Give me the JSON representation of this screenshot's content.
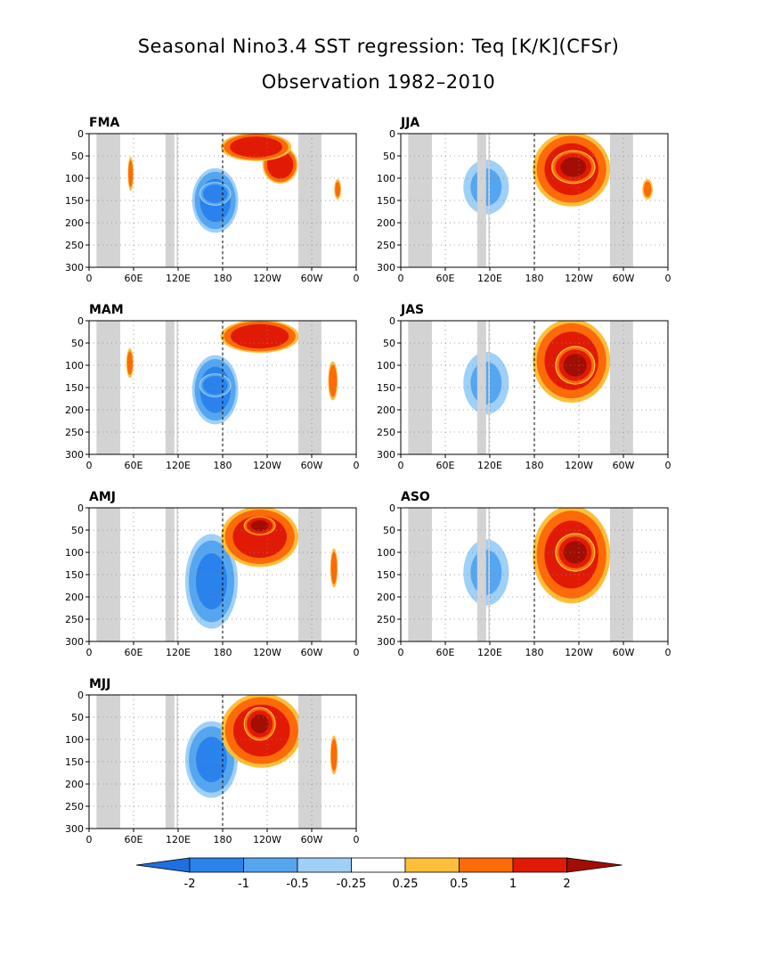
{
  "title": "Seasonal Nino3.4 SST regression: Teq [K/K](CFSr)",
  "subtitle": "Observation 1982–2010",
  "chart_data": [
    {
      "type": "heatmap",
      "panel": "FMA",
      "x_tick_labels": [
        "0",
        "60E",
        "120E",
        "180",
        "120W",
        "60W",
        "0"
      ],
      "y_tick_labels": [
        "0",
        "50",
        "100",
        "150",
        "200",
        "250",
        "300"
      ],
      "xlim": [
        0,
        360
      ],
      "ylim": [
        300,
        0
      ],
      "grid": "dotted",
      "features": [
        {
          "lon": [
            235,
            280
          ],
          "depth": [
            30,
            110
          ],
          "value": 1.5
        },
        {
          "lon": [
            180,
            270
          ],
          "depth": [
            0,
            60
          ],
          "value": 1.5
        },
        {
          "lon": [
            140,
            200
          ],
          "depth": [
            80,
            220
          ],
          "value": -1.2
        },
        {
          "lon": [
            150,
            190
          ],
          "depth": [
            110,
            160
          ],
          "value": -1.7
        },
        {
          "lon": [
            52,
            60
          ],
          "depth": [
            50,
            130
          ],
          "value": 0.7
        },
        {
          "lon": [
            330,
            340
          ],
          "depth": [
            100,
            150
          ],
          "value": 0.6
        }
      ]
    },
    {
      "type": "heatmap",
      "panel": "JJA",
      "x_tick_labels": [
        "0",
        "60E",
        "120E",
        "180",
        "120W",
        "60W",
        "0"
      ],
      "y_tick_labels": [
        "0",
        "50",
        "100",
        "150",
        "200",
        "250",
        "300"
      ],
      "xlim": [
        0,
        360
      ],
      "ylim": [
        300,
        0
      ],
      "grid": "dotted",
      "features": [
        {
          "lon": [
            180,
            280
          ],
          "depth": [
            0,
            160
          ],
          "value": 1.3
        },
        {
          "lon": [
            205,
            260
          ],
          "depth": [
            40,
            110
          ],
          "value": 2.1
        },
        {
          "lon": [
            80,
            150
          ],
          "depth": [
            50,
            190
          ],
          "value": -0.5
        },
        {
          "lon": [
            325,
            340
          ],
          "depth": [
            100,
            150
          ],
          "value": 0.6
        }
      ]
    },
    {
      "type": "heatmap",
      "panel": "MAM",
      "x_tick_labels": [
        "0",
        "60E",
        "120E",
        "180",
        "120W",
        "60W",
        "0"
      ],
      "y_tick_labels": [
        "0",
        "50",
        "100",
        "150",
        "200",
        "250",
        "300"
      ],
      "xlim": [
        0,
        360
      ],
      "ylim": [
        300,
        0
      ],
      "grid": "dotted",
      "features": [
        {
          "lon": [
            180,
            280
          ],
          "depth": [
            0,
            70
          ],
          "value": 1.5
        },
        {
          "lon": [
            140,
            200
          ],
          "depth": [
            80,
            230
          ],
          "value": -1.2
        },
        {
          "lon": [
            150,
            190
          ],
          "depth": [
            120,
            170
          ],
          "value": -1.8
        },
        {
          "lon": [
            50,
            60
          ],
          "depth": [
            60,
            130
          ],
          "value": 0.7
        },
        {
          "lon": [
            322,
            335
          ],
          "depth": [
            90,
            180
          ],
          "value": 0.8
        }
      ]
    },
    {
      "type": "heatmap",
      "panel": "JAS",
      "x_tick_labels": [
        "0",
        "60E",
        "120E",
        "180",
        "120W",
        "60W",
        "0"
      ],
      "y_tick_labels": [
        "0",
        "50",
        "100",
        "150",
        "200",
        "250",
        "300"
      ],
      "xlim": [
        0,
        360
      ],
      "ylim": [
        300,
        0
      ],
      "grid": "dotted",
      "features": [
        {
          "lon": [
            180,
            280
          ],
          "depth": [
            0,
            180
          ],
          "value": 1.3
        },
        {
          "lon": [
            210,
            260
          ],
          "depth": [
            60,
            140
          ],
          "value": 2.1
        },
        {
          "lon": [
            80,
            150
          ],
          "depth": [
            60,
            220
          ],
          "value": -0.5
        }
      ]
    },
    {
      "type": "heatmap",
      "panel": "AMJ",
      "x_tick_labels": [
        "0",
        "60E",
        "120E",
        "180",
        "120W",
        "60W",
        "0"
      ],
      "y_tick_labels": [
        "0",
        "50",
        "100",
        "150",
        "200",
        "250",
        "300"
      ],
      "xlim": [
        0,
        360
      ],
      "ylim": [
        300,
        0
      ],
      "grid": "dotted",
      "features": [
        {
          "lon": [
            180,
            280
          ],
          "depth": [
            0,
            130
          ],
          "value": 1.3
        },
        {
          "lon": [
            210,
            250
          ],
          "depth": [
            20,
            60
          ],
          "value": 2.0
        },
        {
          "lon": [
            130,
            200
          ],
          "depth": [
            60,
            270
          ],
          "value": -1.0
        },
        {
          "lon": [
            325,
            335
          ],
          "depth": [
            90,
            180
          ],
          "value": 0.8
        }
      ]
    },
    {
      "type": "heatmap",
      "panel": "ASO",
      "x_tick_labels": [
        "0",
        "60E",
        "120E",
        "180",
        "120W",
        "60W",
        "0"
      ],
      "y_tick_labels": [
        "0",
        "50",
        "100",
        "150",
        "200",
        "250",
        "300"
      ],
      "xlim": [
        0,
        360
      ],
      "ylim": [
        300,
        0
      ],
      "grid": "dotted",
      "features": [
        {
          "lon": [
            180,
            280
          ],
          "depth": [
            0,
            210
          ],
          "value": 1.3
        },
        {
          "lon": [
            210,
            260
          ],
          "depth": [
            60,
            140
          ],
          "value": 2.1
        },
        {
          "lon": [
            80,
            150
          ],
          "depth": [
            60,
            230
          ],
          "value": -0.5
        }
      ]
    },
    {
      "type": "heatmap",
      "panel": "MJJ",
      "x_tick_labels": [
        "0",
        "60E",
        "120E",
        "180",
        "120W",
        "60W",
        "0"
      ],
      "y_tick_labels": [
        "0",
        "50",
        "100",
        "150",
        "200",
        "250",
        "300"
      ],
      "xlim": [
        0,
        360
      ],
      "ylim": [
        300,
        0
      ],
      "grid": "dotted",
      "features": [
        {
          "lon": [
            180,
            285
          ],
          "depth": [
            0,
            160
          ],
          "value": 1.3
        },
        {
          "lon": [
            210,
            250
          ],
          "depth": [
            30,
            100
          ],
          "value": 2.0
        },
        {
          "lon": [
            130,
            200
          ],
          "depth": [
            60,
            230
          ],
          "value": -1.0
        },
        {
          "lon": [
            325,
            335
          ],
          "depth": [
            90,
            180
          ],
          "value": 0.8
        }
      ]
    }
  ],
  "colorbar": {
    "labels": [
      "-2",
      "-1",
      "-0.5",
      "-0.25",
      "0.25",
      "0.5",
      "1",
      "2"
    ],
    "colors": [
      "#1e6fe0",
      "#2a83ec",
      "#55a6f0",
      "#9fd0f7",
      "#ffffff",
      "#fdbf3a",
      "#fd6a07",
      "#e11a05",
      "#a20d04"
    ]
  }
}
